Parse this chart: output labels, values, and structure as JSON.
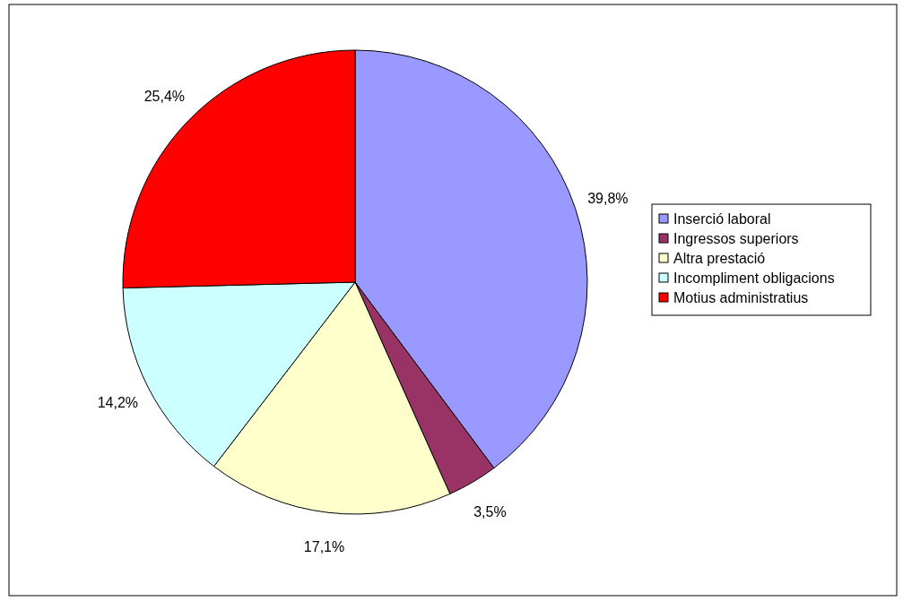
{
  "chart_data": {
    "type": "pie",
    "categories": [
      "Inserció laboral",
      "Ingressos superiors",
      "Altra prestació",
      "Incompliment obligacions",
      "Motius administratius"
    ],
    "values": [
      39.8,
      3.5,
      17.1,
      14.2,
      25.4
    ],
    "value_labels": [
      "39,8%",
      "3,5%",
      "17,1%",
      "14,2%",
      "25,4%"
    ],
    "colors": [
      "#9999ff",
      "#993366",
      "#ffffcc",
      "#ccffff",
      "#ff0000"
    ],
    "legend": "right"
  }
}
